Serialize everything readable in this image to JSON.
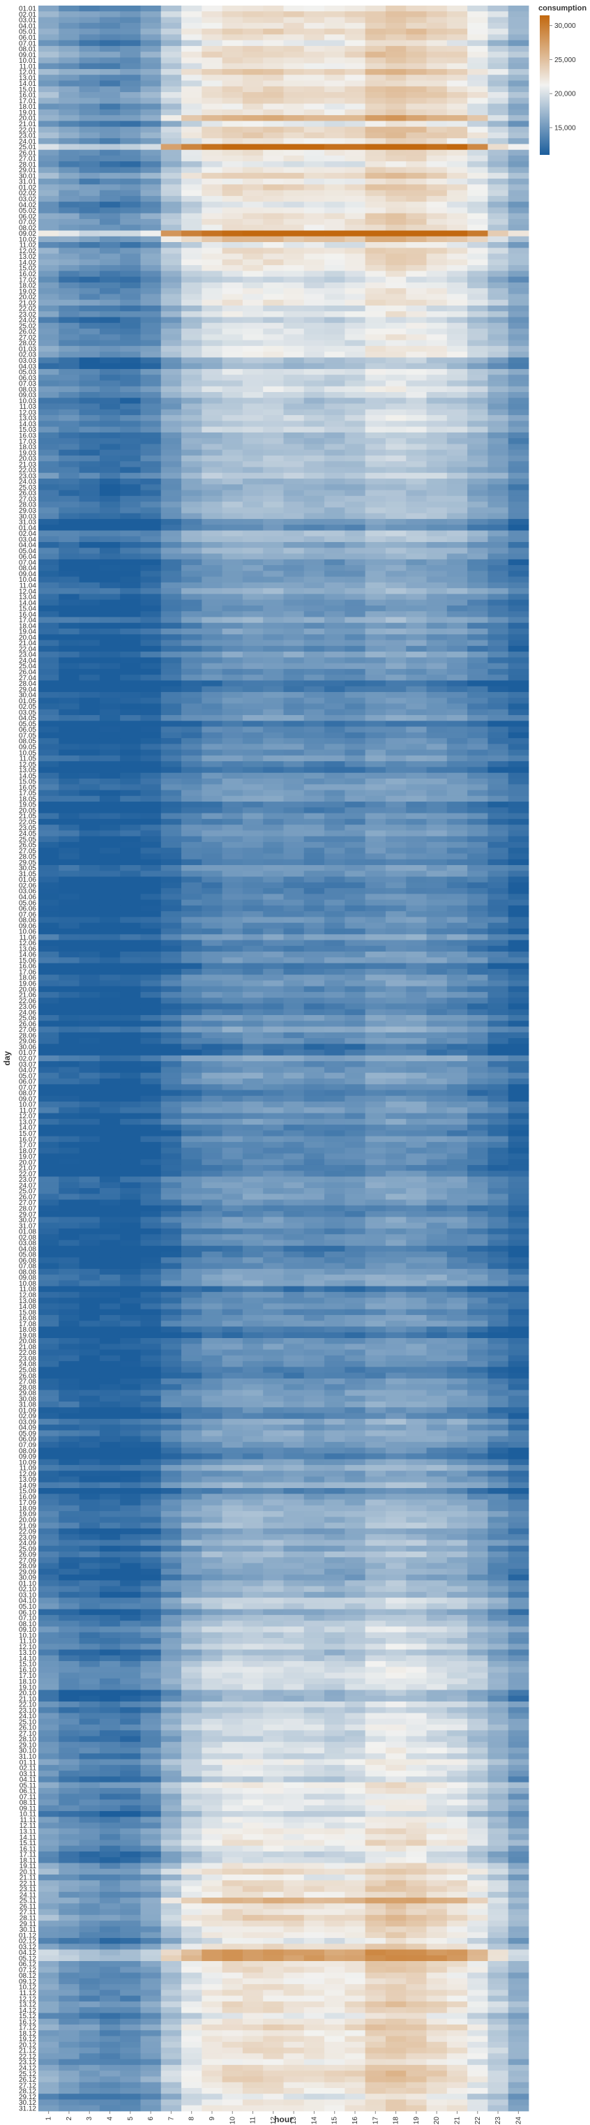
{
  "chart_data": {
    "type": "heatmap",
    "title": "",
    "xlabel": "hour",
    "ylabel": "day",
    "x": [
      "1",
      "2",
      "3",
      "4",
      "5",
      "6",
      "7",
      "8",
      "9",
      "10",
      "11",
      "12",
      "13",
      "14",
      "15",
      "16",
      "17",
      "18",
      "19",
      "20",
      "21",
      "22",
      "23",
      "24"
    ],
    "y_label_format": "DD.MM",
    "y_start": "01.01",
    "y_end": "31.12",
    "num_days": 365,
    "legend": {
      "title": "consumption",
      "placement": "top-right",
      "ticks": [
        30000,
        25000,
        20000,
        15000
      ],
      "tick_labels": [
        "30,000",
        "25,000",
        "20,000",
        "15,000"
      ],
      "range": [
        11000,
        31500
      ],
      "color_low": "#1c5e9c",
      "color_mid": "#f2f2f0",
      "color_high": "#c2680f"
    },
    "value_range": [
      11000,
      31500
    ],
    "monthly_profile": [
      {
        "month": 1,
        "base": 21800
      },
      {
        "month": 2,
        "base": 21400
      },
      {
        "month": 3,
        "base": 19200
      },
      {
        "month": 4,
        "base": 16200
      },
      {
        "month": 5,
        "base": 14200
      },
      {
        "month": 6,
        "base": 14000
      },
      {
        "month": 7,
        "base": 14500
      },
      {
        "month": 8,
        "base": 14200
      },
      {
        "month": 9,
        "base": 14600
      },
      {
        "month": 10,
        "base": 16800
      },
      {
        "month": 11,
        "base": 19500
      },
      {
        "month": 12,
        "base": 21800
      }
    ],
    "hourly_offset": [
      -3200,
      -3800,
      -4200,
      -4400,
      -4300,
      -3600,
      -1800,
      -400,
      400,
      800,
      900,
      900,
      700,
      500,
      400,
      600,
      1500,
      1800,
      1500,
      1000,
      600,
      -300,
      -1500,
      -2800
    ],
    "peak_days": [
      {
        "day": "25.01",
        "offset": 9000
      },
      {
        "day": "20.01",
        "offset": 6000
      },
      {
        "day": "09.02",
        "offset": 9000
      },
      {
        "day": "10.02",
        "offset": 4500
      },
      {
        "day": "25.11",
        "offset": 5500
      },
      {
        "day": "04.12",
        "offset": 3500
      },
      {
        "day": "05.12",
        "offset": 4000
      }
    ]
  }
}
